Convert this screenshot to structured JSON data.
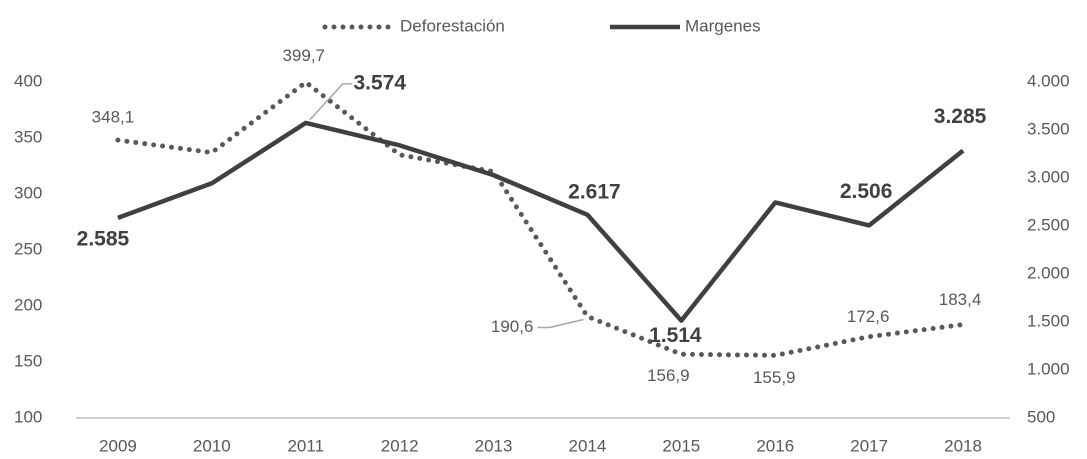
{
  "chart_data": {
    "type": "line",
    "categories": [
      "2009",
      "2010",
      "2011",
      "2012",
      "2013",
      "2014",
      "2015",
      "2016",
      "2017",
      "2018"
    ],
    "series": [
      {
        "name": "Deforestación",
        "color": "#595959",
        "style": "dotted",
        "values": [
          348.1,
          337,
          399.7,
          335,
          320,
          190.6,
          156.9,
          155.9,
          172.6,
          183.4
        ],
        "value_labels": [
          "348,1",
          null,
          "399,7",
          null,
          null,
          "190,6",
          "156,9",
          "155,9",
          "172,6",
          "183,4"
        ]
      },
      {
        "name": "Margenes",
        "color": "#404040",
        "style": "solid",
        "axis": "y2",
        "values": [
          2585,
          2945,
          3574,
          3340,
          3030,
          2617,
          1514,
          2745,
          2506,
          3285
        ],
        "value_labels": [
          "2.585",
          null,
          "3.574",
          null,
          null,
          "2.617",
          "1.514",
          null,
          "2.506",
          "3.285"
        ]
      }
    ],
    "ylim": [
      100,
      400
    ],
    "yticks": [
      100,
      150,
      200,
      250,
      300,
      350,
      400
    ],
    "y2lim": [
      500,
      4000
    ],
    "y2ticks": [
      500,
      {
        "value": 1000,
        "label": "1.000"
      },
      {
        "value": 1500,
        "label": "1.500"
      },
      {
        "value": 2000,
        "label": "2.000"
      },
      {
        "value": 2500,
        "label": "2.500"
      },
      {
        "value": 3000,
        "label": "3.000"
      },
      {
        "value": 3500,
        "label": "3.500"
      },
      {
        "value": 4000,
        "label": "4.000"
      }
    ],
    "legend": "top",
    "grid": false
  }
}
